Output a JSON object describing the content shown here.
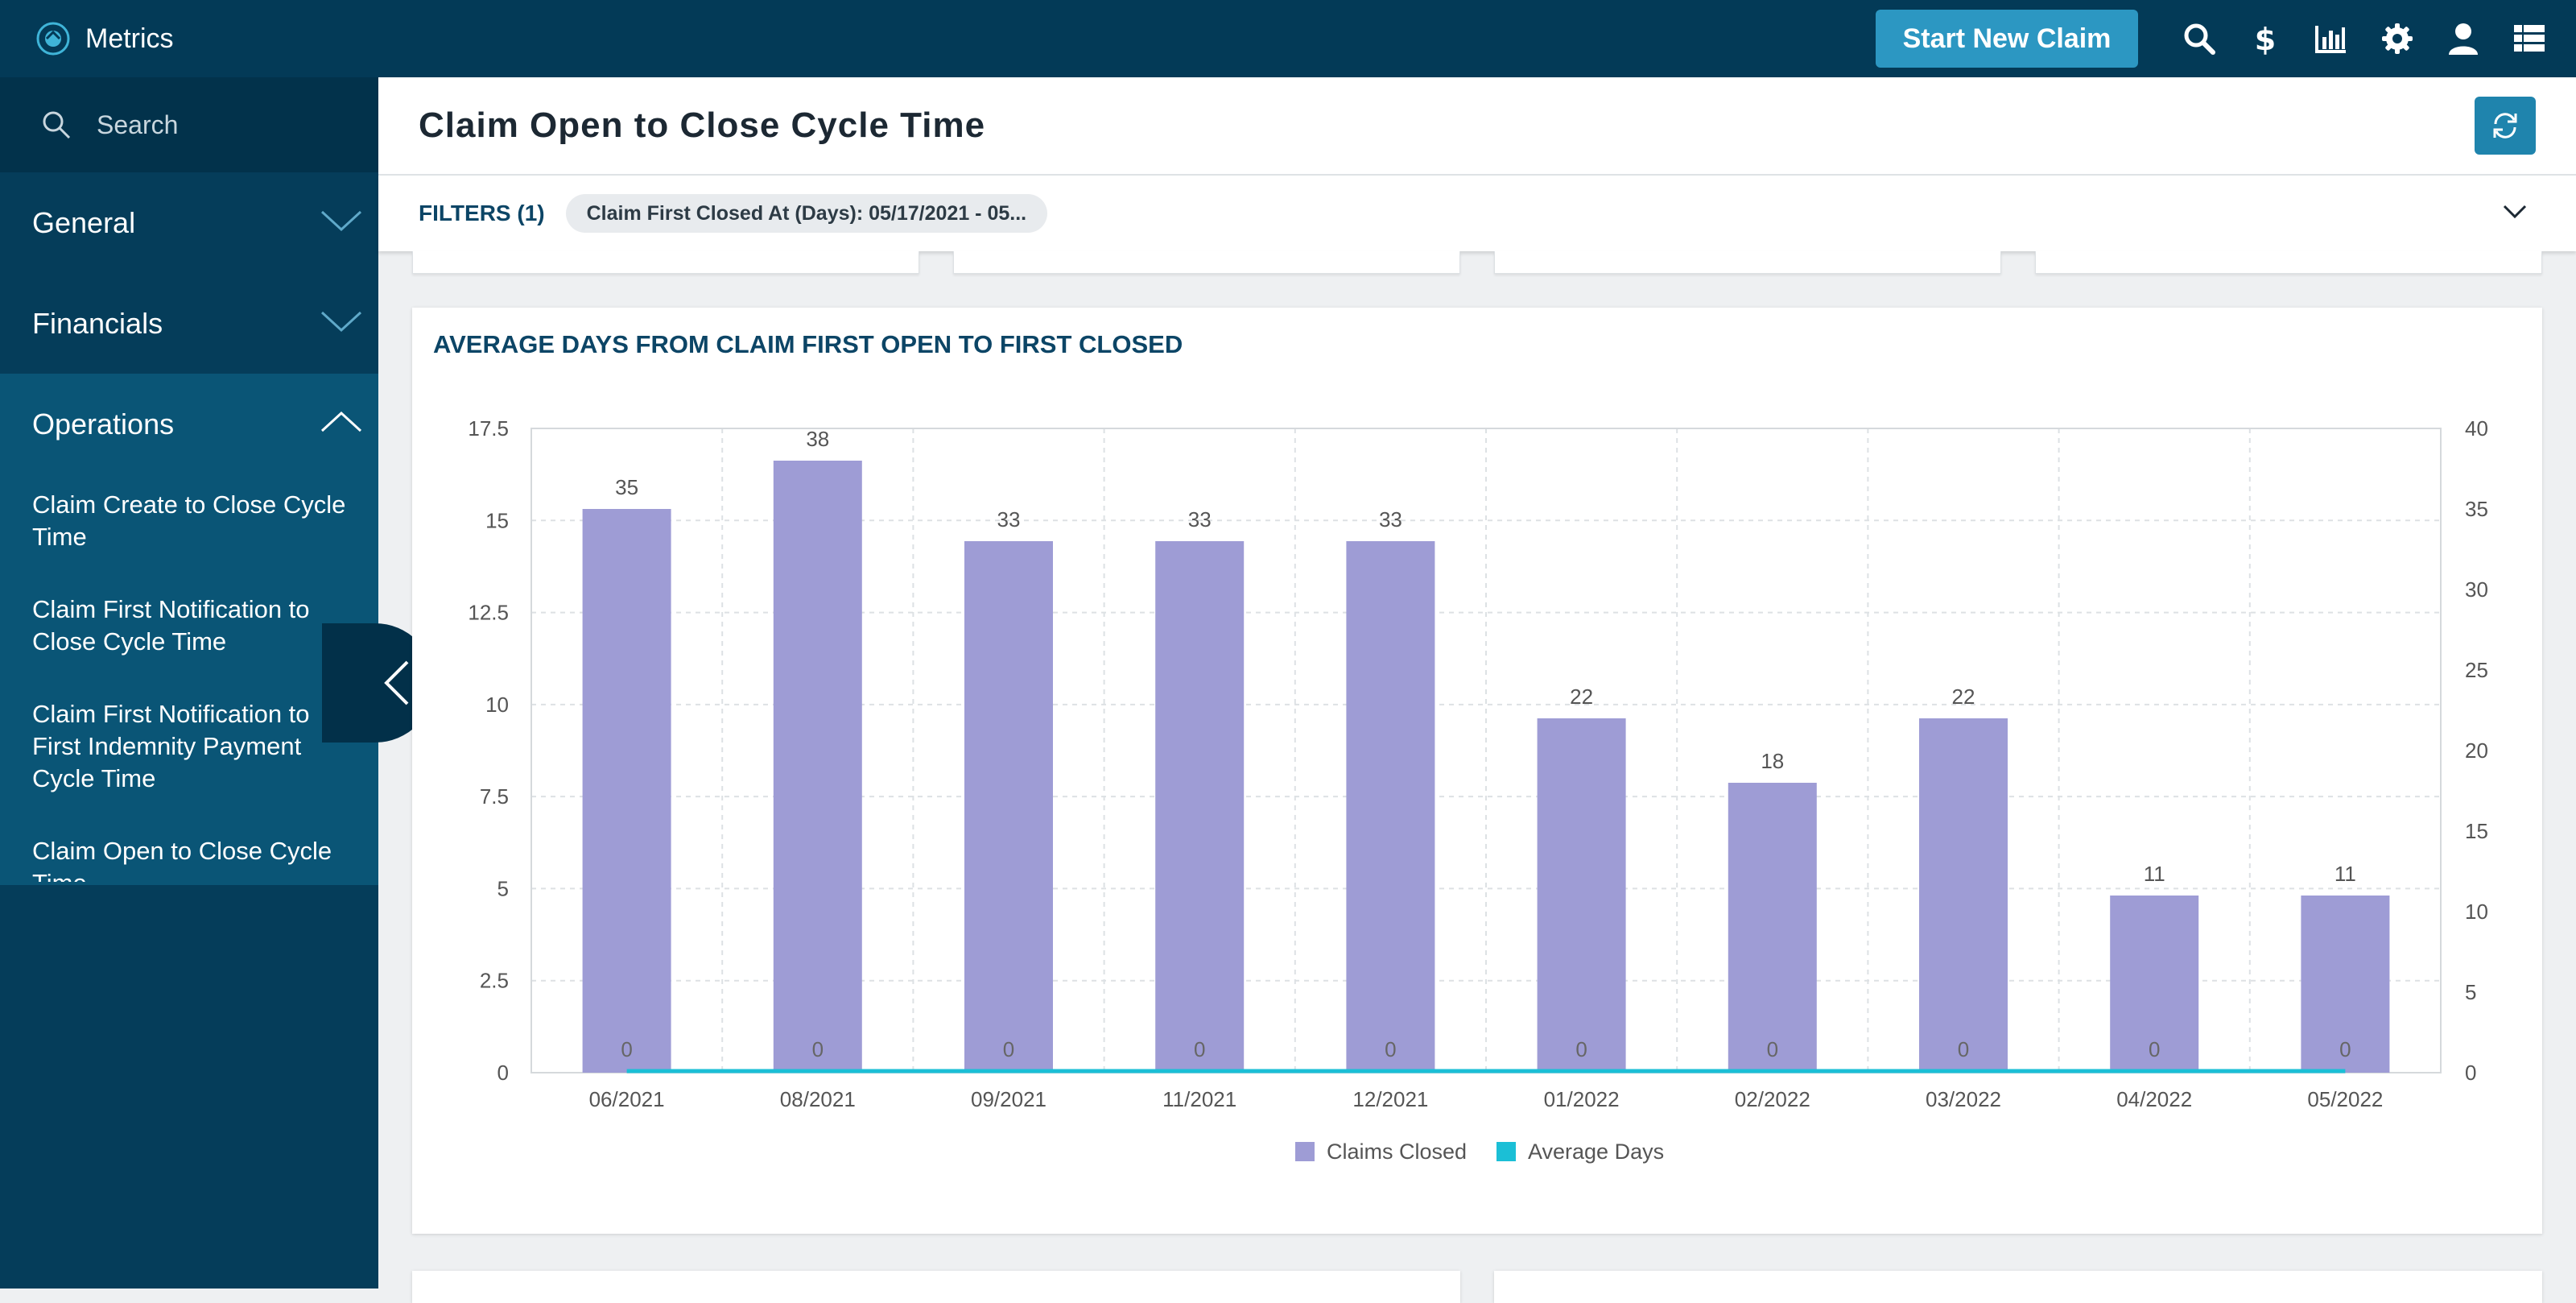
{
  "app": {
    "title": "Metrics"
  },
  "topbar": {
    "start_claim_label": "Start New Claim",
    "icons": [
      "search-icon",
      "dollar-icon",
      "bar-chart-icon",
      "gear-icon",
      "user-icon",
      "grid-list-icon"
    ]
  },
  "sidebar": {
    "search_placeholder": "Search",
    "sections": [
      {
        "label": "General",
        "expanded": false
      },
      {
        "label": "Financials",
        "expanded": false
      },
      {
        "label": "Operations",
        "expanded": true
      }
    ],
    "operations_items": [
      "Claim Create to Close Cycle Time",
      "Claim First Notification to Close Cycle Time",
      "Claim First Notification to First Indemnity Payment Cycle Time",
      "Claim Open to Close Cycle Time"
    ]
  },
  "header": {
    "page_title": "Claim Open to Close Cycle Time"
  },
  "filters": {
    "label": "FILTERS (1)",
    "chip": "Claim First Closed At (Days): 05/17/2021 - 05..."
  },
  "colors": {
    "topbar": "#033a57",
    "sidebar": "#053d5a",
    "accent_button": "#2c97c2",
    "bar": "#9e9cd5",
    "line": "#1bbfd6",
    "title_text": "#0c4566"
  },
  "chart_data": {
    "type": "bar",
    "title": "AVERAGE DAYS FROM CLAIM FIRST OPEN TO FIRST CLOSED",
    "categories": [
      "06/2021",
      "08/2021",
      "09/2021",
      "11/2021",
      "12/2021",
      "01/2022",
      "02/2022",
      "03/2022",
      "04/2022",
      "05/2022"
    ],
    "series": [
      {
        "name": "Claims Closed",
        "type": "bar",
        "axis": "right",
        "values": [
          35,
          38,
          33,
          33,
          33,
          22,
          18,
          22,
          11,
          11
        ]
      },
      {
        "name": "Average Days",
        "type": "line",
        "axis": "left",
        "values": [
          0,
          0,
          0,
          0,
          0,
          0,
          0,
          0,
          0,
          0
        ]
      }
    ],
    "y_left": {
      "range": [
        0,
        17.5
      ],
      "ticks": [
        "0",
        "2.5",
        "5",
        "7.5",
        "10",
        "12.5",
        "15",
        "17.5"
      ]
    },
    "y_right": {
      "range": [
        0,
        40
      ],
      "ticks": [
        "0",
        "5",
        "10",
        "15",
        "20",
        "25",
        "30",
        "35",
        "40"
      ]
    },
    "grid": true,
    "legend": "bottom-center"
  }
}
